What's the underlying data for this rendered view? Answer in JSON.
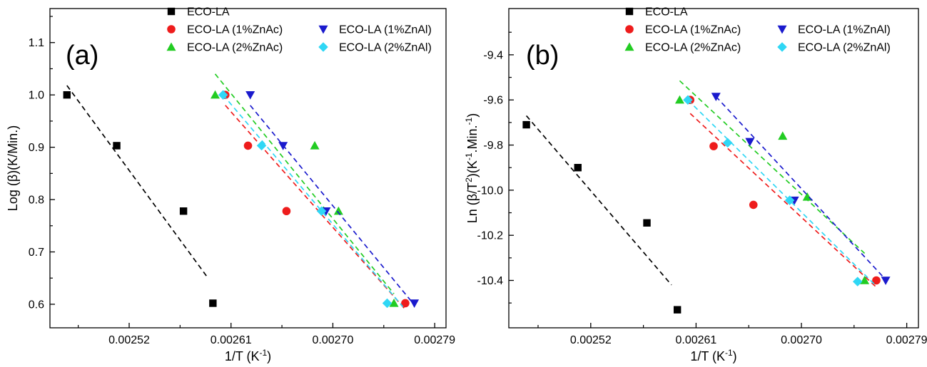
{
  "chart_data": [
    {
      "type": "scatter",
      "panel_label": "(a)",
      "xlabel": {
        "main": "1/T (K",
        "sup": "-1",
        "close": ")"
      },
      "ylabel": {
        "main": "Log (β)(K/Min.)"
      },
      "xlim": [
        0.00245,
        0.0028
      ],
      "ylim": [
        0.555,
        1.165
      ],
      "x_ticks": [
        0.00252,
        0.00261,
        0.0027,
        0.00279
      ],
      "x_tick_labels": [
        "0.00252",
        "0.00261",
        "0.00270",
        "0.00279"
      ],
      "y_ticks": [
        0.6,
        0.7,
        0.8,
        0.9,
        1.0,
        1.1
      ],
      "y_tick_labels": [
        "0.6",
        "0.7",
        "0.8",
        "0.9",
        "1.0",
        "1.1"
      ],
      "grid": false,
      "legend_position": "top",
      "series": [
        {
          "name": "ECO-LA",
          "marker": "square",
          "color": "#000000",
          "x": [
            0.002465,
            0.002509,
            0.002568,
            0.002594
          ],
          "y": [
            1.0,
            0.903,
            0.778,
            0.602
          ],
          "fit": {
            "x": [
              0.002465,
              0.002589
            ],
            "y": [
              1.018,
              0.652
            ]
          }
        },
        {
          "name": "ECO-LA (1%ZnAc)",
          "marker": "circle",
          "color": "#ee1c1c",
          "x": [
            0.002605,
            0.002625,
            0.002659,
            0.002764
          ],
          "y": [
            1.0,
            0.903,
            0.778,
            0.602
          ],
          "fit": {
            "x": [
              0.002605,
              0.002764
            ],
            "y": [
              0.98,
              0.59
            ]
          }
        },
        {
          "name": "ECO-LA (2%ZnAc)",
          "marker": "triangle-up",
          "color": "#22cc22",
          "x": [
            0.002596,
            0.002684,
            0.002705,
            0.002754
          ],
          "y": [
            1.0,
            0.903,
            0.778,
            0.602
          ],
          "fit": {
            "x": [
              0.002596,
              0.002754
            ],
            "y": [
              1.04,
              0.62
            ]
          }
        },
        {
          "name": "ECO-LA (1%ZnAl)",
          "marker": "triangle-down",
          "color": "#1a1acd",
          "x": [
            0.002627,
            0.002656,
            0.002694,
            0.002772
          ],
          "y": [
            1.0,
            0.903,
            0.778,
            0.602
          ],
          "fit": {
            "x": [
              0.002627,
              0.00277
            ],
            "y": [
              0.98,
              0.604
            ]
          }
        },
        {
          "name": "ECO-LA (2%ZnAl)",
          "marker": "diamond",
          "color": "#2fd7f5",
          "x": [
            0.002603,
            0.002637,
            0.00269,
            0.002748
          ],
          "y": [
            1.0,
            0.903,
            0.778,
            0.602
          ],
          "fit": {
            "x": [
              0.002603,
              0.002762
            ],
            "y": [
              1.0,
              0.595
            ]
          }
        }
      ]
    },
    {
      "type": "scatter",
      "panel_label": "(b)",
      "xlabel": {
        "main": "1/T (K",
        "sup": "-1",
        "close": ")"
      },
      "ylabel": {
        "main": "Ln (β/T",
        "sup1": "2",
        "mid": ")(K",
        "sup2": "-1",
        "mid2": ".Min.",
        "sup3": "-1",
        "close": ")"
      },
      "xlim": [
        0.00245,
        0.0028
      ],
      "ylim": [
        -10.61,
        -9.195
      ],
      "x_ticks": [
        0.00252,
        0.00261,
        0.0027,
        0.00279
      ],
      "x_tick_labels": [
        "0.00252",
        "0.00261",
        "0.00270",
        "0.00279"
      ],
      "y_ticks": [
        -10.4,
        -10.2,
        -10.0,
        -9.8,
        -9.6,
        -9.4
      ],
      "y_tick_labels": [
        "-10.4",
        "-10.2",
        "-10.0",
        "-9.8",
        "-9.6",
        "-9.4"
      ],
      "grid": false,
      "legend_position": "top",
      "series": [
        {
          "name": "ECO-LA",
          "marker": "square",
          "color": "#000000",
          "x": [
            0.002465,
            0.002509,
            0.002568,
            0.002594
          ],
          "y": [
            -9.71,
            -9.9,
            -10.145,
            -10.53
          ],
          "fit": {
            "x": [
              0.002465,
              0.002589
            ],
            "y": [
              -9.67,
              -10.42
            ]
          }
        },
        {
          "name": "ECO-LA (1%ZnAc)",
          "marker": "circle",
          "color": "#ee1c1c",
          "x": [
            0.002605,
            0.002625,
            0.002659,
            0.002764
          ],
          "y": [
            -9.6,
            -9.805,
            -10.065,
            -10.4
          ],
          "fit": {
            "x": [
              0.002605,
              0.002764
            ],
            "y": [
              -9.66,
              -10.43
            ]
          }
        },
        {
          "name": "ECO-LA (2%ZnAc)",
          "marker": "triangle-up",
          "color": "#22cc22",
          "x": [
            0.002596,
            0.002684,
            0.002705,
            0.002754
          ],
          "y": [
            -9.6,
            -9.76,
            -10.03,
            -10.4
          ],
          "fit": {
            "x": [
              0.002596,
              0.002754
            ],
            "y": [
              -9.515,
              -10.28
            ]
          }
        },
        {
          "name": "ECO-LA (1%ZnAl)",
          "marker": "triangle-down",
          "color": "#1a1acd",
          "x": [
            0.002627,
            0.002656,
            0.002694,
            0.002772
          ],
          "y": [
            -9.585,
            -9.785,
            -10.045,
            -10.4
          ],
          "fit": {
            "x": [
              0.002627,
              0.00277
            ],
            "y": [
              -9.585,
              -10.385
            ]
          }
        },
        {
          "name": "ECO-LA (2%ZnAl)",
          "marker": "diamond",
          "color": "#2fd7f5",
          "x": [
            0.002603,
            0.002637,
            0.00269,
            0.002748
          ],
          "y": [
            -9.6,
            -9.79,
            -10.045,
            -10.405
          ],
          "fit": {
            "x": [
              0.002603,
              0.002762
            ],
            "y": [
              -9.6,
              -10.415
            ]
          }
        }
      ]
    }
  ]
}
